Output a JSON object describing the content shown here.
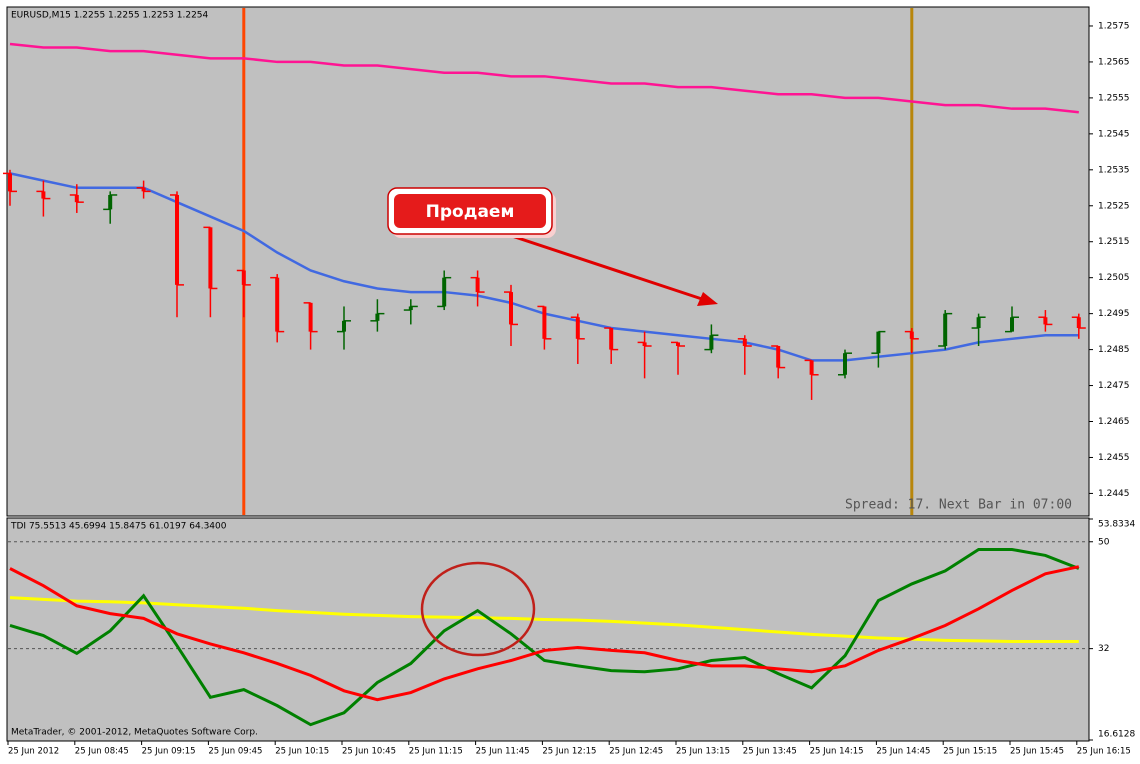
{
  "chart_data": [
    {
      "type": "ohlc",
      "title": "EURUSD,M15  1.2255 1.2255 1.2253 1.2254",
      "annotation": "Продаем",
      "status": "Spread: 17. Next Bar in 07:00",
      "open": [
        1.2534,
        1.2529,
        1.2528,
        1.2524,
        1.253,
        1.2528,
        1.2519,
        1.2507,
        1.2505,
        1.2498,
        1.249,
        1.2493,
        1.2496,
        1.2497,
        1.2505,
        1.2501,
        1.2497,
        1.2494,
        1.2491,
        1.2487,
        1.2487,
        1.2485,
        1.2488,
        1.2486,
        1.2482,
        1.2478,
        1.2484,
        1.249,
        1.2486,
        1.2491,
        1.249,
        1.2494,
        1.2494
      ],
      "high": [
        1.2535,
        1.2532,
        1.2531,
        1.2529,
        1.2532,
        1.2529,
        1.2519,
        1.2507,
        1.2506,
        1.2498,
        1.2497,
        1.2499,
        1.2499,
        1.2507,
        1.2507,
        1.2503,
        1.2497,
        1.2495,
        1.2491,
        1.249,
        1.2487,
        1.2492,
        1.2489,
        1.2486,
        1.2482,
        1.2485,
        1.249,
        1.2491,
        1.2496,
        1.2495,
        1.2497,
        1.2496,
        1.2495
      ],
      "low": [
        1.2525,
        1.2522,
        1.2523,
        1.252,
        1.2527,
        1.2494,
        1.2494,
        1.2494,
        1.2487,
        1.2485,
        1.2485,
        1.249,
        1.2492,
        1.2496,
        1.2497,
        1.2486,
        1.2485,
        1.2481,
        1.2481,
        1.2477,
        1.2478,
        1.2484,
        1.2478,
        1.2477,
        1.2471,
        1.2477,
        1.248,
        1.2484,
        1.2485,
        1.2486,
        1.249,
        1.249,
        1.2488
      ],
      "close": [
        1.2529,
        1.2527,
        1.2526,
        1.2528,
        1.2529,
        1.2503,
        1.2502,
        1.2503,
        1.249,
        1.249,
        1.2493,
        1.2495,
        1.2497,
        1.2505,
        1.2501,
        1.2492,
        1.2488,
        1.2488,
        1.2485,
        1.2486,
        1.2486,
        1.2489,
        1.2486,
        1.248,
        1.2478,
        1.2484,
        1.249,
        1.2488,
        1.2495,
        1.2494,
        1.2494,
        1.2492,
        1.2491
      ],
      "up_color": "#006400",
      "down_color": "#ff0000",
      "series": [
        {
          "color": "#4169e1",
          "values": [
            1.2534,
            1.2532,
            1.253,
            1.253,
            1.253,
            1.2526,
            1.2522,
            1.2518,
            1.2512,
            1.2507,
            1.2504,
            1.2502,
            1.2501,
            1.2501,
            1.25,
            1.2498,
            1.2495,
            1.2493,
            1.2491,
            1.249,
            1.2489,
            1.2488,
            1.2487,
            1.2485,
            1.2482,
            1.2482,
            1.2483,
            1.2484,
            1.2485,
            1.2487,
            1.2488,
            1.2489,
            1.2489
          ]
        },
        {
          "color": "#ff1493",
          "values": [
            1.257,
            1.2569,
            1.2569,
            1.2568,
            1.2568,
            1.2567,
            1.2566,
            1.2566,
            1.2565,
            1.2565,
            1.2564,
            1.2564,
            1.2563,
            1.2562,
            1.2562,
            1.2561,
            1.2561,
            1.256,
            1.2559,
            1.2559,
            1.2558,
            1.2558,
            1.2557,
            1.2556,
            1.2556,
            1.2555,
            1.2555,
            1.2554,
            1.2553,
            1.2553,
            1.2552,
            1.2552,
            1.2551
          ]
        }
      ],
      "vlines": [
        {
          "index": 7,
          "color": "#ff4500"
        },
        {
          "index": 27,
          "color": "#b8860b"
        }
      ],
      "ylim": [
        1.2439,
        1.258
      ],
      "yticks": [
        1.2445,
        1.2455,
        1.2465,
        1.2475,
        1.2485,
        1.2495,
        1.2505,
        1.2515,
        1.2525,
        1.2535,
        1.2545,
        1.2555,
        1.2565,
        1.2575
      ]
    },
    {
      "type": "line",
      "title": "TDI 75.5513 45.6994 15.8475 61.0197 64.3400",
      "footer": "MetaTrader, © 2001-2012, MetaQuotes Software Corp.",
      "categories": [
        "25 Jun 2012",
        null,
        "25 Jun 08:45",
        null,
        "25 Jun 09:15",
        null,
        "25 Jun 09:45",
        null,
        "25 Jun 10:15",
        null,
        "25 Jun 10:45",
        null,
        "25 Jun 11:15",
        null,
        "25 Jun 11:45",
        null,
        "25 Jun 12:15",
        null,
        "25 Jun 12:45",
        null,
        "25 Jun 13:15",
        null,
        "25 Jun 13:45",
        null,
        "25 Jun 14:15",
        null,
        "25 Jun 14:45",
        null,
        "25 Jun 15:15",
        null,
        "25 Jun 15:45",
        null,
        "25 Jun 16:15"
      ],
      "series": [
        {
          "color": "#ffff00",
          "values": [
            40.6,
            40.3,
            40.0,
            39.9,
            39.7,
            39.4,
            39.1,
            38.8,
            38.4,
            38.1,
            37.8,
            37.6,
            37.4,
            37.3,
            37.2,
            37.1,
            36.9,
            36.8,
            36.6,
            36.3,
            36.0,
            35.6,
            35.2,
            34.8,
            34.4,
            34.1,
            33.8,
            33.6,
            33.4,
            33.3,
            33.2,
            33.2,
            33.2
          ]
        },
        {
          "color": "#008000",
          "values": [
            35.9,
            34.2,
            31.2,
            35.0,
            40.9,
            32.5,
            23.8,
            25.1,
            22.4,
            19.2,
            21.2,
            26.3,
            29.5,
            35.0,
            38.4,
            34.5,
            30.0,
            29.1,
            28.3,
            28.1,
            28.6,
            30.0,
            30.5,
            27.8,
            25.4,
            30.8,
            40.1,
            42.9,
            45.1,
            48.7,
            48.7,
            47.7,
            45.5
          ]
        },
        {
          "color": "#ff0000",
          "values": [
            45.5,
            42.6,
            39.2,
            37.9,
            37.1,
            34.5,
            32.8,
            31.3,
            29.5,
            27.5,
            24.9,
            23.4,
            24.6,
            26.9,
            28.6,
            30.0,
            31.7,
            32.2,
            31.7,
            31.3,
            30.0,
            29.1,
            29.1,
            28.6,
            28.1,
            29.1,
            31.7,
            33.7,
            35.9,
            38.7,
            41.8,
            44.6,
            45.8
          ]
        }
      ],
      "ylim": [
        16.6128,
        53.8334
      ],
      "yticks": [
        16.6128,
        32,
        50,
        53.8334
      ]
    }
  ]
}
